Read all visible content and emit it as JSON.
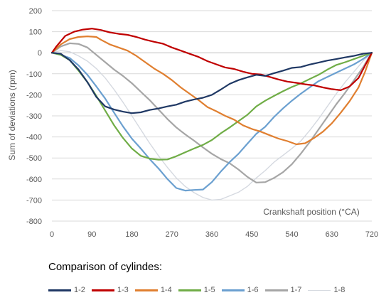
{
  "chart_data": {
    "type": "line",
    "title": "",
    "xlabel": "Crankshaft position (°CA)",
    "ylabel": "Sum of deviations (rpm)",
    "xlim": [
      0,
      720
    ],
    "ylim": [
      -800,
      200
    ],
    "xticks": [
      0,
      90,
      180,
      270,
      360,
      450,
      540,
      630,
      720
    ],
    "yticks": [
      200,
      100,
      0,
      -100,
      -200,
      -300,
      -400,
      -500,
      -600,
      -700,
      -800
    ],
    "grid": "horizontal",
    "legend_title": "Comparison of cylindes:",
    "legend_position": "bottom",
    "series": [
      {
        "name": "1-2",
        "color": "#1f3864",
        "width": 2.2,
        "points": [
          [
            0,
            0
          ],
          [
            20,
            -5
          ],
          [
            40,
            -35
          ],
          [
            60,
            -80
          ],
          [
            80,
            -140
          ],
          [
            100,
            -210
          ],
          [
            120,
            -255
          ],
          [
            140,
            -270
          ],
          [
            160,
            -280
          ],
          [
            180,
            -287
          ],
          [
            200,
            -283
          ],
          [
            220,
            -272
          ],
          [
            240,
            -265
          ],
          [
            260,
            -255
          ],
          [
            280,
            -247
          ],
          [
            300,
            -232
          ],
          [
            320,
            -222
          ],
          [
            340,
            -214
          ],
          [
            360,
            -200
          ],
          [
            380,
            -175
          ],
          [
            400,
            -148
          ],
          [
            420,
            -130
          ],
          [
            440,
            -117
          ],
          [
            460,
            -105
          ],
          [
            480,
            -110
          ],
          [
            500,
            -97
          ],
          [
            520,
            -85
          ],
          [
            540,
            -72
          ],
          [
            560,
            -68
          ],
          [
            580,
            -56
          ],
          [
            600,
            -47
          ],
          [
            620,
            -37
          ],
          [
            640,
            -30
          ],
          [
            660,
            -22
          ],
          [
            680,
            -15
          ],
          [
            700,
            -5
          ],
          [
            720,
            0
          ]
        ]
      },
      {
        "name": "1-3",
        "color": "#c00000",
        "width": 2.2,
        "points": [
          [
            0,
            0
          ],
          [
            10,
            30
          ],
          [
            30,
            80
          ],
          [
            50,
            100
          ],
          [
            70,
            110
          ],
          [
            90,
            115
          ],
          [
            110,
            108
          ],
          [
            130,
            97
          ],
          [
            150,
            90
          ],
          [
            170,
            85
          ],
          [
            190,
            75
          ],
          [
            210,
            62
          ],
          [
            230,
            52
          ],
          [
            250,
            43
          ],
          [
            270,
            25
          ],
          [
            290,
            10
          ],
          [
            310,
            -5
          ],
          [
            330,
            -20
          ],
          [
            350,
            -40
          ],
          [
            370,
            -55
          ],
          [
            390,
            -70
          ],
          [
            410,
            -77
          ],
          [
            430,
            -90
          ],
          [
            450,
            -100
          ],
          [
            470,
            -103
          ],
          [
            490,
            -115
          ],
          [
            510,
            -127
          ],
          [
            530,
            -137
          ],
          [
            550,
            -143
          ],
          [
            570,
            -150
          ],
          [
            590,
            -155
          ],
          [
            610,
            -165
          ],
          [
            630,
            -173
          ],
          [
            650,
            -178
          ],
          [
            670,
            -160
          ],
          [
            690,
            -120
          ],
          [
            705,
            -60
          ],
          [
            720,
            0
          ]
        ]
      },
      {
        "name": "1-4",
        "color": "#e07f30",
        "width": 2.2,
        "points": [
          [
            0,
            0
          ],
          [
            20,
            40
          ],
          [
            40,
            65
          ],
          [
            60,
            75
          ],
          [
            80,
            78
          ],
          [
            100,
            75
          ],
          [
            110,
            62
          ],
          [
            130,
            40
          ],
          [
            150,
            25
          ],
          [
            170,
            10
          ],
          [
            190,
            -15
          ],
          [
            210,
            -45
          ],
          [
            230,
            -75
          ],
          [
            250,
            -100
          ],
          [
            270,
            -130
          ],
          [
            290,
            -165
          ],
          [
            310,
            -195
          ],
          [
            330,
            -225
          ],
          [
            350,
            -258
          ],
          [
            370,
            -278
          ],
          [
            390,
            -300
          ],
          [
            410,
            -318
          ],
          [
            430,
            -345
          ],
          [
            450,
            -362
          ],
          [
            470,
            -375
          ],
          [
            490,
            -392
          ],
          [
            510,
            -408
          ],
          [
            530,
            -420
          ],
          [
            550,
            -435
          ],
          [
            570,
            -430
          ],
          [
            590,
            -405
          ],
          [
            610,
            -375
          ],
          [
            630,
            -335
          ],
          [
            650,
            -285
          ],
          [
            670,
            -230
          ],
          [
            690,
            -165
          ],
          [
            705,
            -90
          ],
          [
            720,
            0
          ]
        ]
      },
      {
        "name": "1-5",
        "color": "#70ad47",
        "width": 2.2,
        "points": [
          [
            0,
            0
          ],
          [
            20,
            -10
          ],
          [
            40,
            -35
          ],
          [
            60,
            -85
          ],
          [
            80,
            -140
          ],
          [
            100,
            -205
          ],
          [
            120,
            -275
          ],
          [
            140,
            -345
          ],
          [
            160,
            -405
          ],
          [
            180,
            -455
          ],
          [
            200,
            -490
          ],
          [
            220,
            -503
          ],
          [
            240,
            -508
          ],
          [
            260,
            -507
          ],
          [
            280,
            -492
          ],
          [
            300,
            -473
          ],
          [
            320,
            -455
          ],
          [
            340,
            -438
          ],
          [
            360,
            -415
          ],
          [
            380,
            -383
          ],
          [
            400,
            -355
          ],
          [
            420,
            -325
          ],
          [
            440,
            -295
          ],
          [
            460,
            -255
          ],
          [
            480,
            -228
          ],
          [
            500,
            -205
          ],
          [
            520,
            -183
          ],
          [
            540,
            -163
          ],
          [
            560,
            -146
          ],
          [
            580,
            -125
          ],
          [
            600,
            -105
          ],
          [
            620,
            -80
          ],
          [
            640,
            -58
          ],
          [
            660,
            -45
          ],
          [
            680,
            -30
          ],
          [
            700,
            -15
          ],
          [
            720,
            0
          ]
        ]
      },
      {
        "name": "1-6",
        "color": "#6ba0d0",
        "width": 2.2,
        "points": [
          [
            0,
            0
          ],
          [
            20,
            -10
          ],
          [
            40,
            -25
          ],
          [
            60,
            -60
          ],
          [
            80,
            -105
          ],
          [
            100,
            -160
          ],
          [
            120,
            -218
          ],
          [
            140,
            -285
          ],
          [
            160,
            -350
          ],
          [
            180,
            -408
          ],
          [
            200,
            -455
          ],
          [
            220,
            -505
          ],
          [
            240,
            -550
          ],
          [
            260,
            -600
          ],
          [
            280,
            -643
          ],
          [
            300,
            -655
          ],
          [
            320,
            -652
          ],
          [
            340,
            -650
          ],
          [
            360,
            -615
          ],
          [
            380,
            -565
          ],
          [
            400,
            -520
          ],
          [
            420,
            -480
          ],
          [
            440,
            -432
          ],
          [
            460,
            -385
          ],
          [
            480,
            -352
          ],
          [
            500,
            -305
          ],
          [
            520,
            -265
          ],
          [
            540,
            -228
          ],
          [
            560,
            -195
          ],
          [
            580,
            -165
          ],
          [
            600,
            -135
          ],
          [
            620,
            -115
          ],
          [
            640,
            -95
          ],
          [
            660,
            -75
          ],
          [
            680,
            -55
          ],
          [
            700,
            -30
          ],
          [
            720,
            0
          ]
        ]
      },
      {
        "name": "1-7",
        "color": "#a6a6a6",
        "width": 2.2,
        "points": [
          [
            0,
            0
          ],
          [
            20,
            30
          ],
          [
            40,
            45
          ],
          [
            60,
            42
          ],
          [
            80,
            25
          ],
          [
            100,
            -10
          ],
          [
            120,
            -45
          ],
          [
            140,
            -80
          ],
          [
            160,
            -110
          ],
          [
            180,
            -145
          ],
          [
            200,
            -185
          ],
          [
            220,
            -225
          ],
          [
            240,
            -270
          ],
          [
            260,
            -315
          ],
          [
            280,
            -355
          ],
          [
            300,
            -388
          ],
          [
            320,
            -418
          ],
          [
            340,
            -450
          ],
          [
            360,
            -480
          ],
          [
            380,
            -505
          ],
          [
            400,
            -525
          ],
          [
            420,
            -555
          ],
          [
            440,
            -590
          ],
          [
            460,
            -617
          ],
          [
            480,
            -615
          ],
          [
            500,
            -595
          ],
          [
            520,
            -568
          ],
          [
            540,
            -530
          ],
          [
            560,
            -480
          ],
          [
            580,
            -425
          ],
          [
            600,
            -365
          ],
          [
            620,
            -305
          ],
          [
            640,
            -245
          ],
          [
            660,
            -190
          ],
          [
            680,
            -130
          ],
          [
            700,
            -70
          ],
          [
            720,
            0
          ]
        ]
      },
      {
        "name": "1-8",
        "color": "#d5d9e0",
        "width": 1.4,
        "points": [
          [
            0,
            0
          ],
          [
            20,
            10
          ],
          [
            40,
            5
          ],
          [
            60,
            -15
          ],
          [
            80,
            -40
          ],
          [
            100,
            -75
          ],
          [
            120,
            -120
          ],
          [
            140,
            -175
          ],
          [
            160,
            -235
          ],
          [
            180,
            -300
          ],
          [
            200,
            -365
          ],
          [
            220,
            -430
          ],
          [
            240,
            -490
          ],
          [
            260,
            -545
          ],
          [
            280,
            -595
          ],
          [
            300,
            -635
          ],
          [
            320,
            -665
          ],
          [
            340,
            -688
          ],
          [
            360,
            -700
          ],
          [
            380,
            -697
          ],
          [
            400,
            -680
          ],
          [
            420,
            -663
          ],
          [
            440,
            -635
          ],
          [
            460,
            -595
          ],
          [
            480,
            -560
          ],
          [
            500,
            -520
          ],
          [
            520,
            -488
          ],
          [
            540,
            -455
          ],
          [
            560,
            -420
          ],
          [
            580,
            -370
          ],
          [
            600,
            -315
          ],
          [
            620,
            -255
          ],
          [
            640,
            -195
          ],
          [
            660,
            -140
          ],
          [
            680,
            -90
          ],
          [
            700,
            -40
          ],
          [
            720,
            0
          ]
        ]
      }
    ]
  }
}
